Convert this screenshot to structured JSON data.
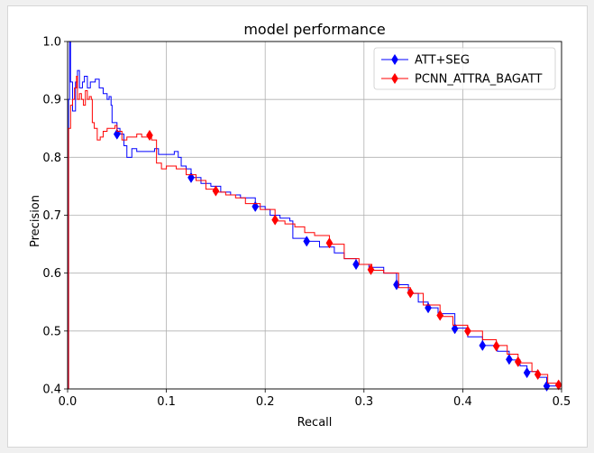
{
  "chart_data": {
    "type": "line",
    "title": "model performance",
    "xlabel": "Recall",
    "ylabel": "Precision",
    "xlim": [
      0.0,
      0.5
    ],
    "ylim": [
      0.4,
      1.0
    ],
    "grid": true,
    "legend_position": "top-right",
    "xticks": [
      "0.0",
      "0.1",
      "0.2",
      "0.3",
      "0.4",
      "0.5"
    ],
    "yticks": [
      "0.4",
      "0.5",
      "0.6",
      "0.7",
      "0.8",
      "0.9",
      "1.0"
    ],
    "series": [
      {
        "name": "ATT+SEG",
        "color": "#0000ff",
        "marker": "diamond",
        "points": [
          [
            0.0,
            0.4
          ],
          [
            0.001,
            0.9
          ],
          [
            0.002,
            1.0
          ],
          [
            0.003,
            0.93
          ],
          [
            0.005,
            0.88
          ],
          [
            0.008,
            0.93
          ],
          [
            0.01,
            0.95
          ],
          [
            0.012,
            0.92
          ],
          [
            0.015,
            0.93
          ],
          [
            0.017,
            0.94
          ],
          [
            0.02,
            0.92
          ],
          [
            0.023,
            0.93
          ],
          [
            0.026,
            0.93
          ],
          [
            0.028,
            0.935
          ],
          [
            0.032,
            0.92
          ],
          [
            0.036,
            0.91
          ],
          [
            0.04,
            0.9
          ],
          [
            0.042,
            0.905
          ],
          [
            0.044,
            0.89
          ],
          [
            0.045,
            0.86
          ],
          [
            0.05,
            0.85
          ],
          [
            0.053,
            0.84
          ],
          [
            0.057,
            0.82
          ],
          [
            0.06,
            0.8
          ],
          [
            0.065,
            0.815
          ],
          [
            0.07,
            0.81
          ],
          [
            0.08,
            0.81
          ],
          [
            0.088,
            0.815
          ],
          [
            0.092,
            0.805
          ],
          [
            0.1,
            0.805
          ],
          [
            0.108,
            0.81
          ],
          [
            0.112,
            0.8
          ],
          [
            0.115,
            0.785
          ],
          [
            0.12,
            0.78
          ],
          [
            0.125,
            0.765
          ],
          [
            0.135,
            0.755
          ],
          [
            0.145,
            0.75
          ],
          [
            0.155,
            0.74
          ],
          [
            0.165,
            0.735
          ],
          [
            0.175,
            0.73
          ],
          [
            0.19,
            0.715
          ],
          [
            0.2,
            0.71
          ],
          [
            0.205,
            0.7
          ],
          [
            0.215,
            0.695
          ],
          [
            0.225,
            0.69
          ],
          [
            0.228,
            0.66
          ],
          [
            0.242,
            0.655
          ],
          [
            0.255,
            0.645
          ],
          [
            0.27,
            0.635
          ],
          [
            0.28,
            0.625
          ],
          [
            0.292,
            0.615
          ],
          [
            0.305,
            0.61
          ],
          [
            0.32,
            0.6
          ],
          [
            0.333,
            0.58
          ],
          [
            0.345,
            0.565
          ],
          [
            0.355,
            0.55
          ],
          [
            0.365,
            0.54
          ],
          [
            0.375,
            0.53
          ],
          [
            0.392,
            0.505
          ],
          [
            0.405,
            0.49
          ],
          [
            0.42,
            0.475
          ],
          [
            0.435,
            0.465
          ],
          [
            0.447,
            0.45
          ],
          [
            0.458,
            0.44
          ],
          [
            0.465,
            0.43
          ],
          [
            0.475,
            0.42
          ],
          [
            0.485,
            0.405
          ],
          [
            0.5,
            0.4
          ]
        ]
      },
      {
        "name": "PCNN_ATTRA_BAGATT",
        "color": "#ff0000",
        "marker": "diamond",
        "points": [
          [
            0.0,
            0.4
          ],
          [
            0.001,
            0.85
          ],
          [
            0.003,
            0.89
          ],
          [
            0.005,
            0.9
          ],
          [
            0.007,
            0.92
          ],
          [
            0.009,
            0.94
          ],
          [
            0.01,
            0.9
          ],
          [
            0.012,
            0.91
          ],
          [
            0.014,
            0.9
          ],
          [
            0.016,
            0.89
          ],
          [
            0.018,
            0.915
          ],
          [
            0.02,
            0.9
          ],
          [
            0.022,
            0.905
          ],
          [
            0.024,
            0.9
          ],
          [
            0.025,
            0.86
          ],
          [
            0.027,
            0.85
          ],
          [
            0.03,
            0.83
          ],
          [
            0.033,
            0.835
          ],
          [
            0.036,
            0.845
          ],
          [
            0.04,
            0.85
          ],
          [
            0.045,
            0.85
          ],
          [
            0.048,
            0.855
          ],
          [
            0.05,
            0.845
          ],
          [
            0.055,
            0.83
          ],
          [
            0.06,
            0.835
          ],
          [
            0.065,
            0.835
          ],
          [
            0.07,
            0.84
          ],
          [
            0.075,
            0.835
          ],
          [
            0.082,
            0.835
          ],
          [
            0.085,
            0.83
          ],
          [
            0.09,
            0.79
          ],
          [
            0.095,
            0.78
          ],
          [
            0.1,
            0.785
          ],
          [
            0.105,
            0.785
          ],
          [
            0.11,
            0.78
          ],
          [
            0.12,
            0.77
          ],
          [
            0.13,
            0.76
          ],
          [
            0.14,
            0.745
          ],
          [
            0.15,
            0.74
          ],
          [
            0.16,
            0.735
          ],
          [
            0.17,
            0.73
          ],
          [
            0.18,
            0.72
          ],
          [
            0.195,
            0.71
          ],
          [
            0.21,
            0.69
          ],
          [
            0.22,
            0.685
          ],
          [
            0.23,
            0.68
          ],
          [
            0.24,
            0.67
          ],
          [
            0.25,
            0.665
          ],
          [
            0.265,
            0.65
          ],
          [
            0.28,
            0.625
          ],
          [
            0.295,
            0.615
          ],
          [
            0.308,
            0.605
          ],
          [
            0.32,
            0.6
          ],
          [
            0.335,
            0.575
          ],
          [
            0.347,
            0.565
          ],
          [
            0.36,
            0.545
          ],
          [
            0.377,
            0.525
          ],
          [
            0.39,
            0.51
          ],
          [
            0.405,
            0.5
          ],
          [
            0.42,
            0.485
          ],
          [
            0.434,
            0.475
          ],
          [
            0.445,
            0.46
          ],
          [
            0.456,
            0.445
          ],
          [
            0.47,
            0.43
          ],
          [
            0.476,
            0.425
          ],
          [
            0.486,
            0.41
          ],
          [
            0.497,
            0.405
          ],
          [
            0.5,
            0.4
          ]
        ],
        "marker_points": [
          [
            0.083,
            0.838
          ],
          [
            0.15,
            0.742
          ],
          [
            0.21,
            0.692
          ],
          [
            0.265,
            0.652
          ],
          [
            0.307,
            0.606
          ],
          [
            0.347,
            0.566
          ],
          [
            0.377,
            0.527
          ],
          [
            0.405,
            0.5
          ],
          [
            0.434,
            0.474
          ],
          [
            0.456,
            0.447
          ],
          [
            0.476,
            0.425
          ],
          [
            0.497,
            0.407
          ]
        ]
      }
    ],
    "blue_marker_points": [
      [
        0.05,
        0.84
      ],
      [
        0.125,
        0.765
      ],
      [
        0.19,
        0.715
      ],
      [
        0.242,
        0.655
      ],
      [
        0.292,
        0.615
      ],
      [
        0.333,
        0.58
      ],
      [
        0.365,
        0.54
      ],
      [
        0.392,
        0.504
      ],
      [
        0.42,
        0.475
      ],
      [
        0.447,
        0.451
      ],
      [
        0.465,
        0.428
      ],
      [
        0.485,
        0.405
      ]
    ]
  }
}
